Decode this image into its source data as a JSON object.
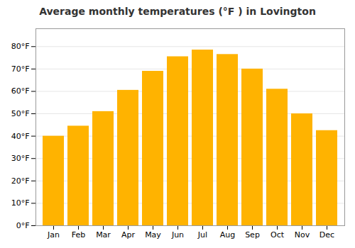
{
  "chart_data": {
    "type": "bar",
    "title": "Average monthly temperatures (°F ) in Lovington",
    "categories": [
      "Jan",
      "Feb",
      "Mar",
      "Apr",
      "May",
      "Jun",
      "Jul",
      "Aug",
      "Sep",
      "Oct",
      "Nov",
      "Dec"
    ],
    "values": [
      40.0,
      44.5,
      51.0,
      60.5,
      69.0,
      75.5,
      78.5,
      76.5,
      70.0,
      61.0,
      50.0,
      42.5
    ],
    "color": "#FFB300",
    "ylim": [
      0,
      88
    ],
    "yticks": [
      {
        "value": 0,
        "label": "0°F"
      },
      {
        "value": 10,
        "label": "10°F"
      },
      {
        "value": 20,
        "label": "20°F"
      },
      {
        "value": 30,
        "label": "30°F"
      },
      {
        "value": 40,
        "label": "40°F"
      },
      {
        "value": 50,
        "label": "50°F"
      },
      {
        "value": 60,
        "label": "60°F"
      },
      {
        "value": 70,
        "label": "70°F"
      },
      {
        "value": 80,
        "label": "80°F"
      }
    ],
    "grid": true
  }
}
